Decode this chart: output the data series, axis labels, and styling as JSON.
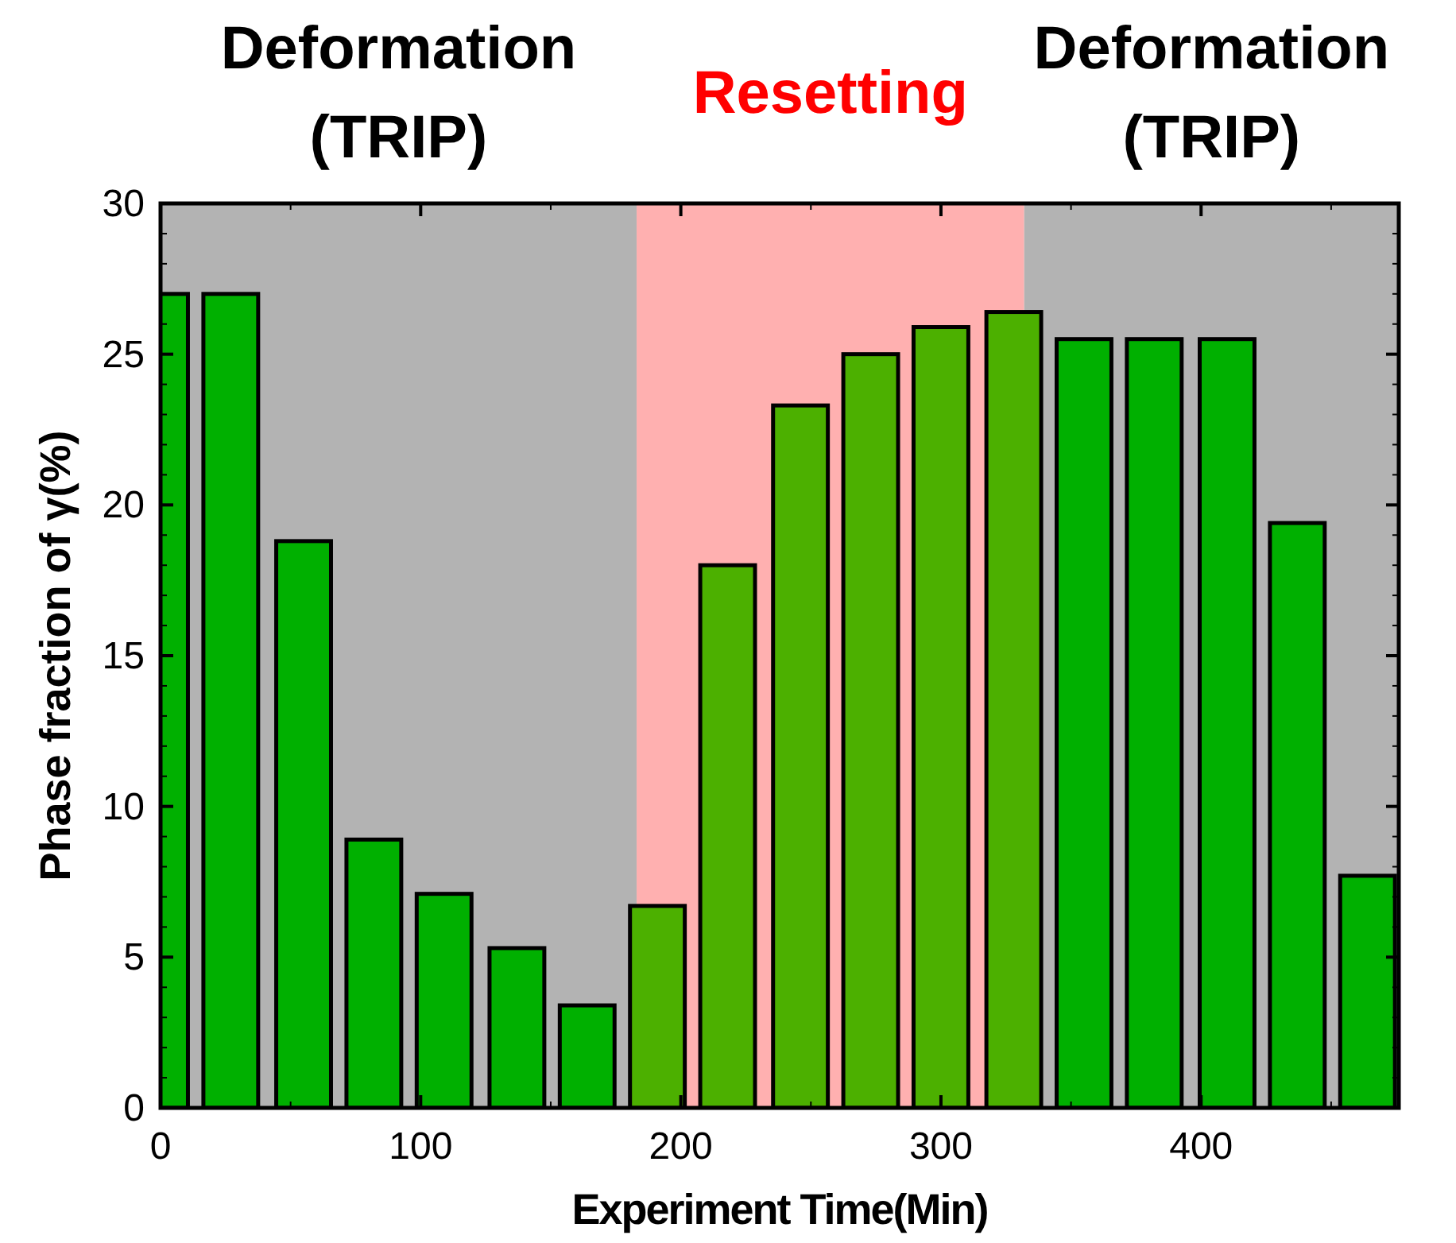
{
  "chart_data": {
    "type": "bar",
    "xlabel": "Experiment Time(Min)",
    "ylabel": "Phase fraction of γ(%)",
    "x": [
      0,
      27,
      55,
      82,
      109,
      137,
      164,
      191,
      218,
      246,
      273,
      300,
      328,
      355,
      382,
      410,
      437,
      464
    ],
    "values": [
      27.0,
      27.0,
      18.8,
      8.9,
      7.1,
      5.3,
      3.4,
      6.7,
      18.0,
      23.3,
      25.0,
      25.9,
      26.4,
      25.5,
      25.5,
      25.5,
      19.4,
      7.7
    ],
    "colors": [
      "#00b000",
      "#00b000",
      "#00b000",
      "#00b000",
      "#00b000",
      "#00b000",
      "#00b000",
      "#4cb000",
      "#4cb000",
      "#4cb000",
      "#4cb000",
      "#4cb000",
      "#4cb000",
      "#00b000",
      "#00b000",
      "#00b000",
      "#00b000",
      "#00b000"
    ],
    "xlim": [
      0,
      476
    ],
    "xticks": [
      0,
      100,
      200,
      300,
      400
    ],
    "ylim": [
      0,
      30
    ],
    "yticks": [
      0,
      5,
      10,
      15,
      20,
      25,
      30
    ],
    "bands": [
      {
        "axis": "x",
        "from": 0,
        "to": 183,
        "label": "Deformation (TRIP)",
        "color": "#b3b3b3"
      },
      {
        "axis": "x",
        "from": 183,
        "to": 332,
        "label": "Resetting",
        "color": "#ffb0b0"
      },
      {
        "axis": "x",
        "from": 332,
        "to": 476,
        "label": "Deformation (TRIP)",
        "color": "#b3b3b3"
      }
    ],
    "grid": false
  }
}
